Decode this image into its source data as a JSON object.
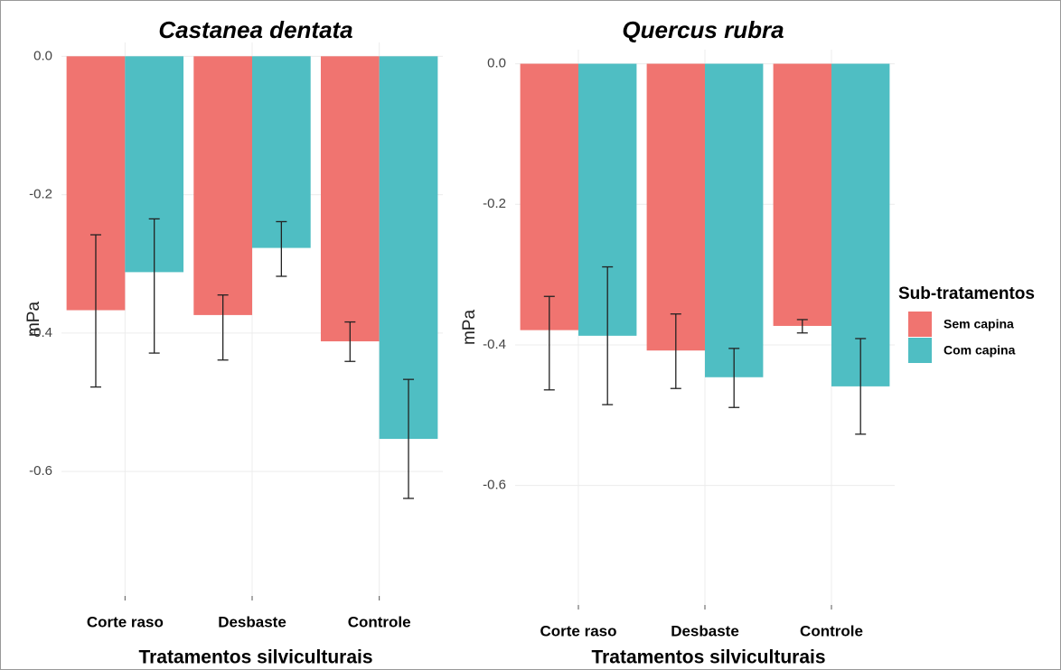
{
  "chart_data": [
    {
      "type": "bar",
      "title": "Castanea dentata",
      "x_label": "Tratamentos silviculturais",
      "y_label": "mPa",
      "categories": [
        "Corte raso",
        "Desbaste",
        "Controle"
      ],
      "series": [
        {
          "name": "Sem capina",
          "color": "#f07470",
          "values": [
            -0.367,
            -0.374,
            -0.412
          ],
          "errors": [
            [
              -0.478,
              -0.258
            ],
            [
              -0.439,
              -0.345
            ],
            [
              -0.441,
              -0.384
            ]
          ]
        },
        {
          "name": "Com capina",
          "color": "#4fbec3",
          "values": [
            -0.312,
            -0.277,
            -0.553
          ],
          "errors": [
            [
              -0.429,
              -0.235
            ],
            [
              -0.318,
              -0.239
            ],
            [
              -0.639,
              -0.467
            ]
          ]
        }
      ],
      "ylim": [
        -0.78,
        0.02
      ],
      "yticks": [
        {
          "value": 0,
          "label": "0.0"
        },
        -0.2,
        -0.4,
        -0.6
      ],
      "grid": true
    },
    {
      "type": "bar",
      "title": "Quercus rubra",
      "x_label": "Tratamentos silviculturais",
      "y_label": "mPa",
      "categories": [
        "Corte raso",
        "Desbaste",
        "Controle"
      ],
      "series": [
        {
          "name": "Sem capina",
          "color": "#f07470",
          "values": [
            -0.379,
            -0.408,
            -0.373
          ],
          "errors": [
            [
              -0.464,
              -0.331
            ],
            [
              -0.462,
              -0.356
            ],
            [
              -0.383,
              -0.364
            ]
          ]
        },
        {
          "name": "Com capina",
          "color": "#4fbec3",
          "values": [
            -0.387,
            -0.446,
            -0.459
          ],
          "errors": [
            [
              -0.485,
              -0.289
            ],
            [
              -0.489,
              -0.405
            ],
            [
              -0.527,
              -0.391
            ]
          ]
        }
      ],
      "ylim": [
        -0.77,
        0.02
      ],
      "yticks": [
        {
          "value": 0,
          "label": "0.0"
        },
        -0.2,
        -0.4,
        -0.6
      ],
      "grid": true,
      "legend_title": "Sub-tratamentos",
      "legend": "right"
    }
  ]
}
